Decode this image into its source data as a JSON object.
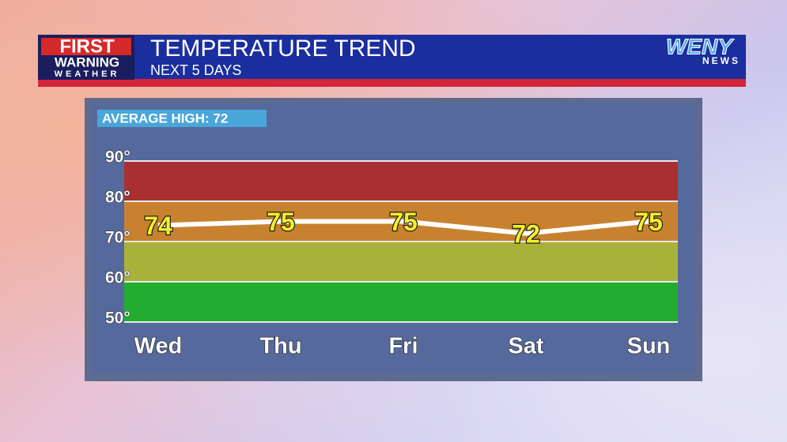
{
  "header": {
    "logo_lines": [
      "FIRST",
      "WARNING",
      "WEATHER"
    ],
    "station": "WENY",
    "station_sub": "NEWS"
  },
  "chart_data": {
    "type": "line",
    "title": "TEMPERATURE TREND",
    "subtitle": "NEXT 5 DAYS",
    "annotation": "AVERAGE HIGH: 72",
    "categories": [
      "Wed",
      "Thu",
      "Fri",
      "Sat",
      "Sun"
    ],
    "values": [
      74,
      75,
      75,
      72,
      75
    ],
    "color": "#ffffff",
    "ylim": [
      50,
      90
    ],
    "yticks": [
      {
        "value": 50,
        "label": "50°"
      },
      {
        "value": 60,
        "label": "60°"
      },
      {
        "value": 70,
        "label": "70°"
      },
      {
        "value": 80,
        "label": "80°"
      },
      {
        "value": 90,
        "label": "90°"
      }
    ],
    "bands": [
      {
        "range": [
          50,
          60
        ],
        "color": "#22ad30"
      },
      {
        "range": [
          60,
          70
        ],
        "color": "#a9b13b"
      },
      {
        "range": [
          70,
          80
        ],
        "color": "#c8822f"
      },
      {
        "range": [
          80,
          90
        ],
        "color": "#aa2f31"
      }
    ],
    "grid": true
  }
}
